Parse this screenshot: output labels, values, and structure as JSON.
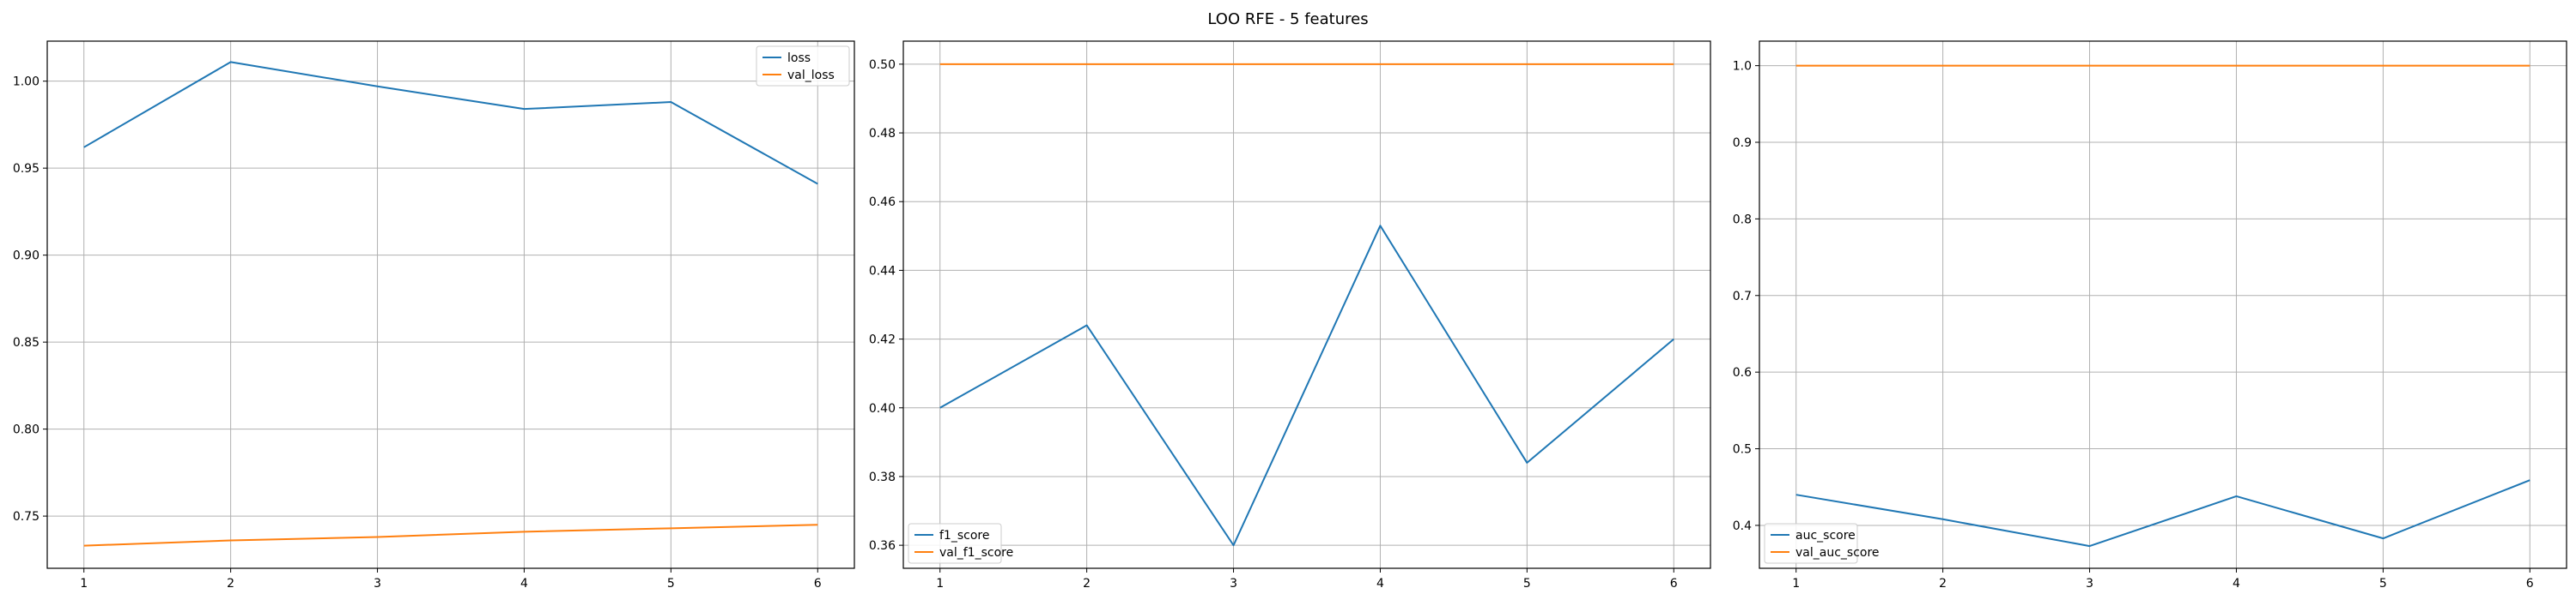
{
  "figure": {
    "title": "LOO RFE - 5 features"
  },
  "colors": {
    "train": "#1f77b4",
    "validation": "#ff7f0e",
    "grid": "#b0b0b0",
    "axes": "#000000",
    "legend_border": "#cccccc"
  },
  "chart_data": [
    {
      "type": "line",
      "title": "",
      "xlabel": "",
      "ylabel": "",
      "x": [
        1,
        2,
        3,
        4,
        5,
        6
      ],
      "xlim": [
        0.75,
        6.25
      ],
      "ylim": [
        0.72,
        1.023
      ],
      "xticks": [
        1,
        2,
        3,
        4,
        5,
        6
      ],
      "yticks": [
        0.75,
        0.8,
        0.85,
        0.9,
        0.95,
        1.0
      ],
      "ytick_labels": [
        "0.75",
        "0.80",
        "0.85",
        "0.90",
        "0.95",
        "1.00"
      ],
      "grid": true,
      "legend_position": "upper right",
      "series": [
        {
          "name": "loss",
          "color": "#1f77b4",
          "values": [
            0.962,
            1.011,
            0.997,
            0.984,
            0.988,
            0.941
          ]
        },
        {
          "name": "val_loss",
          "color": "#ff7f0e",
          "values": [
            0.733,
            0.736,
            0.738,
            0.741,
            0.743,
            0.745
          ]
        }
      ]
    },
    {
      "type": "line",
      "title": "",
      "xlabel": "",
      "ylabel": "",
      "x": [
        1,
        2,
        3,
        4,
        5,
        6
      ],
      "xlim": [
        0.75,
        6.25
      ],
      "ylim": [
        0.3533,
        0.5067
      ],
      "xticks": [
        1,
        2,
        3,
        4,
        5,
        6
      ],
      "yticks": [
        0.36,
        0.38,
        0.4,
        0.42,
        0.44,
        0.46,
        0.48,
        0.5
      ],
      "ytick_labels": [
        "0.36",
        "0.38",
        "0.40",
        "0.42",
        "0.44",
        "0.46",
        "0.48",
        "0.50"
      ],
      "grid": true,
      "legend_position": "lower left",
      "series": [
        {
          "name": "f1_score",
          "color": "#1f77b4",
          "values": [
            0.4,
            0.424,
            0.36,
            0.453,
            0.384,
            0.42
          ]
        },
        {
          "name": "val_f1_score",
          "color": "#ff7f0e",
          "values": [
            0.5,
            0.5,
            0.5,
            0.5,
            0.5,
            0.5
          ]
        }
      ]
    },
    {
      "type": "line",
      "title": "",
      "xlabel": "",
      "ylabel": "",
      "x": [
        1,
        2,
        3,
        4,
        5,
        6
      ],
      "xlim": [
        0.75,
        6.25
      ],
      "ylim": [
        0.344,
        1.032
      ],
      "xticks": [
        1,
        2,
        3,
        4,
        5,
        6
      ],
      "yticks": [
        0.4,
        0.5,
        0.6,
        0.7,
        0.8,
        0.9,
        1.0
      ],
      "ytick_labels": [
        "0.4",
        "0.5",
        "0.6",
        "0.7",
        "0.8",
        "0.9",
        "1.0"
      ],
      "grid": true,
      "legend_position": "lower left",
      "series": [
        {
          "name": "auc_score",
          "color": "#1f77b4",
          "values": [
            0.44,
            0.408,
            0.373,
            0.438,
            0.383,
            0.459
          ]
        },
        {
          "name": "val_auc_score",
          "color": "#ff7f0e",
          "values": [
            1.0,
            1.0,
            1.0,
            1.0,
            1.0,
            1.0
          ]
        }
      ]
    }
  ]
}
